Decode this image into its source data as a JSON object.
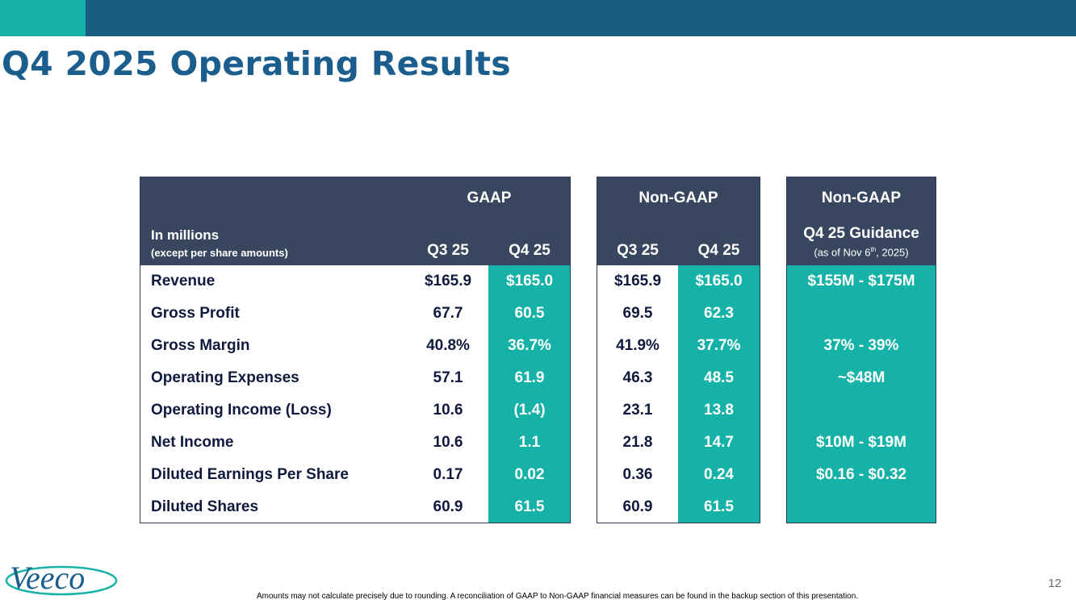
{
  "title": "Q4 2025 Operating Results",
  "page_number": "12",
  "footnote": "Amounts may not calculate precisely due to rounding.  A reconciliation of GAAP to Non-GAAP financial measures can be found in the backup section of this presentation.",
  "logo_text": "Veeco",
  "colors": {
    "navy_header": "#38475f",
    "teal": "#16b2a8",
    "topbar": "#175e82",
    "title": "#1b5e8e"
  },
  "table": {
    "units_label": "In millions",
    "units_sublabel": "(except per share amounts)",
    "gaap": {
      "header": "GAAP",
      "col1": "Q3 25",
      "col2": "Q4 25"
    },
    "nongaap": {
      "header": "Non-GAAP",
      "col1": "Q3 25",
      "col2": "Q4 25"
    },
    "guidance": {
      "header": "Non-GAAP",
      "subheader": "Q4 25 Guidance",
      "note_pre": "(as of Nov 6",
      "note_sup": "th",
      "note_post": ", 2025)"
    },
    "rows": [
      {
        "label": "Revenue",
        "gaap_q3": "$165.9",
        "gaap_q4": "$165.0",
        "ng_q3": "$165.9",
        "ng_q4": "$165.0",
        "guide": "$155M - $175M"
      },
      {
        "label": "Gross Profit",
        "gaap_q3": "67.7",
        "gaap_q4": "60.5",
        "ng_q3": "69.5",
        "ng_q4": "62.3",
        "guide": ""
      },
      {
        "label": "Gross Margin",
        "gaap_q3": "40.8%",
        "gaap_q4": "36.7%",
        "ng_q3": "41.9%",
        "ng_q4": "37.7%",
        "guide": "37% - 39%"
      },
      {
        "label": "Operating Expenses",
        "gaap_q3": "57.1",
        "gaap_q4": "61.9",
        "ng_q3": "46.3",
        "ng_q4": "48.5",
        "guide": "~$48M"
      },
      {
        "label": "Operating Income (Loss)",
        "gaap_q3": "10.6",
        "gaap_q4": "(1.4)",
        "ng_q3": "23.1",
        "ng_q4": "13.8",
        "guide": ""
      },
      {
        "label": "Net Income",
        "gaap_q3": "10.6",
        "gaap_q4": "1.1",
        "ng_q3": "21.8",
        "ng_q4": "14.7",
        "guide": "$10M - $19M"
      },
      {
        "label": "Diluted Earnings Per Share",
        "gaap_q3": "0.17",
        "gaap_q4": "0.02",
        "ng_q3": "0.36",
        "ng_q4": "0.24",
        "guide": "$0.16 - $0.32"
      },
      {
        "label": "Diluted Shares",
        "gaap_q3": "60.9",
        "gaap_q4": "61.5",
        "ng_q3": "60.9",
        "ng_q4": "61.5",
        "guide": ""
      }
    ]
  }
}
